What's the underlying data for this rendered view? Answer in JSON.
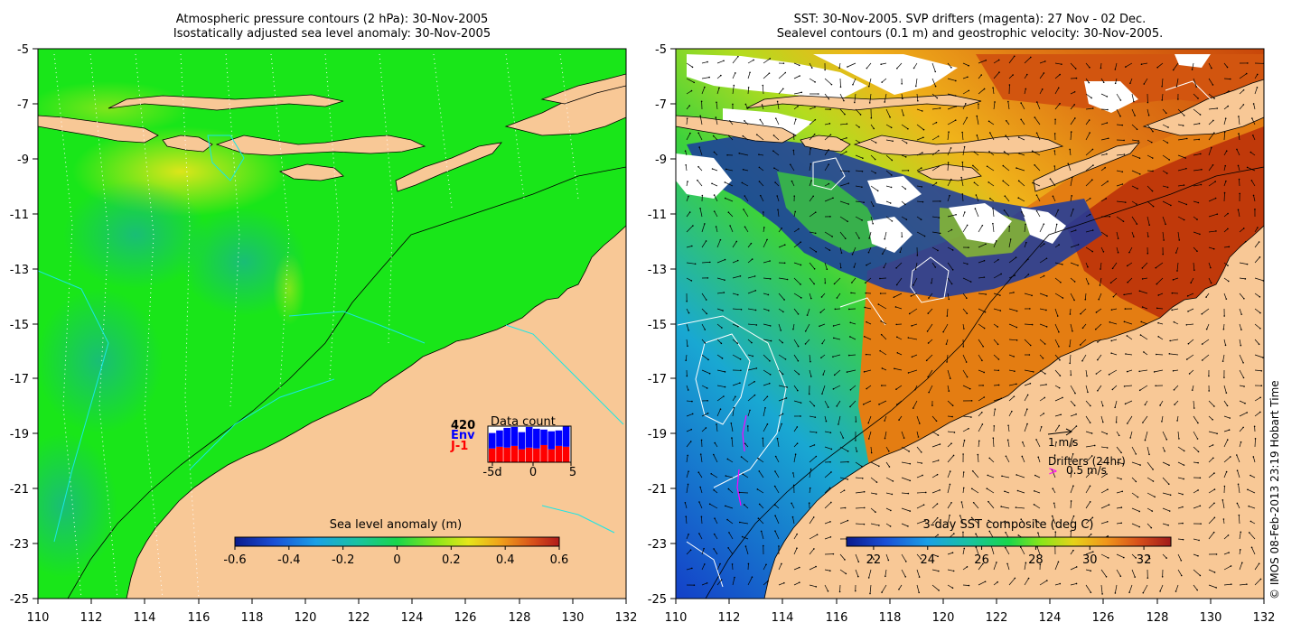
{
  "left_map": {
    "title_line1": "Atmospheric pressure contours (2 hPa): 30-Nov-2005",
    "title_line2": "Isostatically adjusted sea level anomaly: 30-Nov-2005",
    "y_ticks": [
      "-5",
      "-7",
      "-9",
      "-11",
      "-13",
      "-15",
      "-17",
      "-19",
      "-21",
      "-23",
      "-25"
    ],
    "x_ticks": [
      "110",
      "112",
      "114",
      "116",
      "118",
      "120",
      "122",
      "124",
      "126",
      "128",
      "130",
      "132"
    ],
    "colorbar_title": "Sea level anomaly (m)",
    "colorbar_ticks": [
      "-0.6",
      "-0.4",
      "-0.2",
      "0",
      "0.2",
      "0.4",
      "0.6"
    ],
    "colorbar_range": [
      -0.6,
      0.6
    ],
    "inset": {
      "title": "Data count",
      "max_label": "420",
      "series1": "Env",
      "series2": "J-1",
      "x_ticks": [
        "-5d",
        "0",
        "5"
      ],
      "env_color": "#0000ff",
      "j1_color": "#ff0000",
      "bars": [
        {
          "day": -5,
          "j1": 160,
          "env": 180
        },
        {
          "day": -4,
          "j1": 180,
          "env": 190
        },
        {
          "day": -3,
          "j1": 170,
          "env": 230
        },
        {
          "day": -2,
          "j1": 190,
          "env": 220
        },
        {
          "day": -1,
          "j1": 150,
          "env": 200
        },
        {
          "day": 0,
          "j1": 170,
          "env": 240
        },
        {
          "day": 1,
          "j1": 160,
          "env": 230
        },
        {
          "day": 2,
          "j1": 200,
          "env": 180
        },
        {
          "day": 3,
          "j1": 150,
          "env": 210
        },
        {
          "day": 4,
          "j1": 190,
          "env": 180
        },
        {
          "day": 5,
          "j1": 180,
          "env": 240
        }
      ]
    }
  },
  "right_map": {
    "title_line1": "SST: 30-Nov-2005. SVP drifters (magenta): 27 Nov - 02 Dec.",
    "title_line2": "Sealevel contours (0.1 m) and geostrophic velocity: 30-Nov-2005.",
    "y_ticks": [
      "-5",
      "-7",
      "-9",
      "-11",
      "-13",
      "-15",
      "-17",
      "-19",
      "-21",
      "-23",
      "-25"
    ],
    "x_ticks": [
      "110",
      "112",
      "114",
      "116",
      "118",
      "120",
      "122",
      "124",
      "126",
      "128",
      "130",
      "132"
    ],
    "colorbar_title": "3-day SST composite (deg C)",
    "colorbar_ticks": [
      "22",
      "24",
      "26",
      "28",
      "30",
      "32"
    ],
    "colorbar_range": [
      21,
      33
    ],
    "velocity_scale_label": "1 m/s",
    "drifters_label": "Drifters (24hr)",
    "drifters_scale_label": "0.5 m/s",
    "drifter_color": "#ff00ff"
  },
  "copyright": "© IMOS 08-Feb-2013 23:19 Hobart Time",
  "colors": {
    "land": "#f8c896",
    "ocean_green": "#19e619",
    "sst_orange": "#e47d12",
    "sst_red": "#c0390a",
    "sst_blue": "#1458d2",
    "sst_navy": "#12248f"
  }
}
